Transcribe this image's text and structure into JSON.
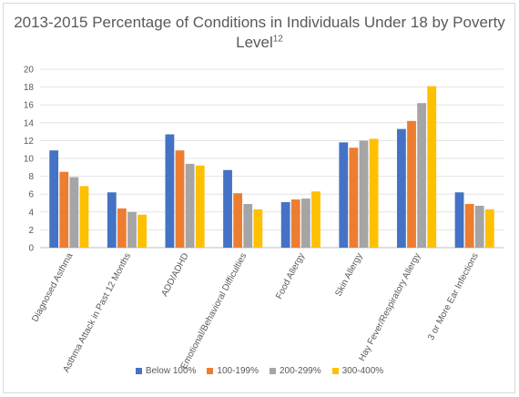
{
  "chart_data": {
    "type": "bar",
    "title": "2013-2015 Percentage of Conditions in Individuals Under 18 by Poverty Level",
    "title_superscript": "12",
    "xlabel": "",
    "ylabel": "",
    "ylim": [
      0,
      20
    ],
    "yticks": [
      0,
      2,
      4,
      6,
      8,
      10,
      12,
      14,
      16,
      18,
      20
    ],
    "grid": true,
    "legend_position": "bottom",
    "categories": [
      "Diagnosed Asthma",
      "Asthma Attack in Past 12 Months",
      "ADD/ADHD",
      "Emotional/Behavioral Difficulties",
      "Food Allergy",
      "Skin Allergy",
      "Hay Fever/Respiratory Allergy",
      "3 or More Ear Infections"
    ],
    "series": [
      {
        "name": "Below 100%",
        "color": "#4472c4",
        "values": [
          10.9,
          6.2,
          12.7,
          8.7,
          5.1,
          11.8,
          13.3,
          6.2
        ]
      },
      {
        "name": "100-199%",
        "color": "#ed7d31",
        "values": [
          8.5,
          4.4,
          10.9,
          6.1,
          5.4,
          11.2,
          14.2,
          4.9
        ]
      },
      {
        "name": "200-299%",
        "color": "#a5a5a5",
        "values": [
          7.9,
          4.0,
          9.4,
          4.9,
          5.5,
          12.0,
          16.2,
          4.7
        ]
      },
      {
        "name": "300-400%",
        "color": "#ffc000",
        "values": [
          6.9,
          3.7,
          9.2,
          4.3,
          6.3,
          12.2,
          18.1,
          4.3
        ]
      }
    ]
  }
}
